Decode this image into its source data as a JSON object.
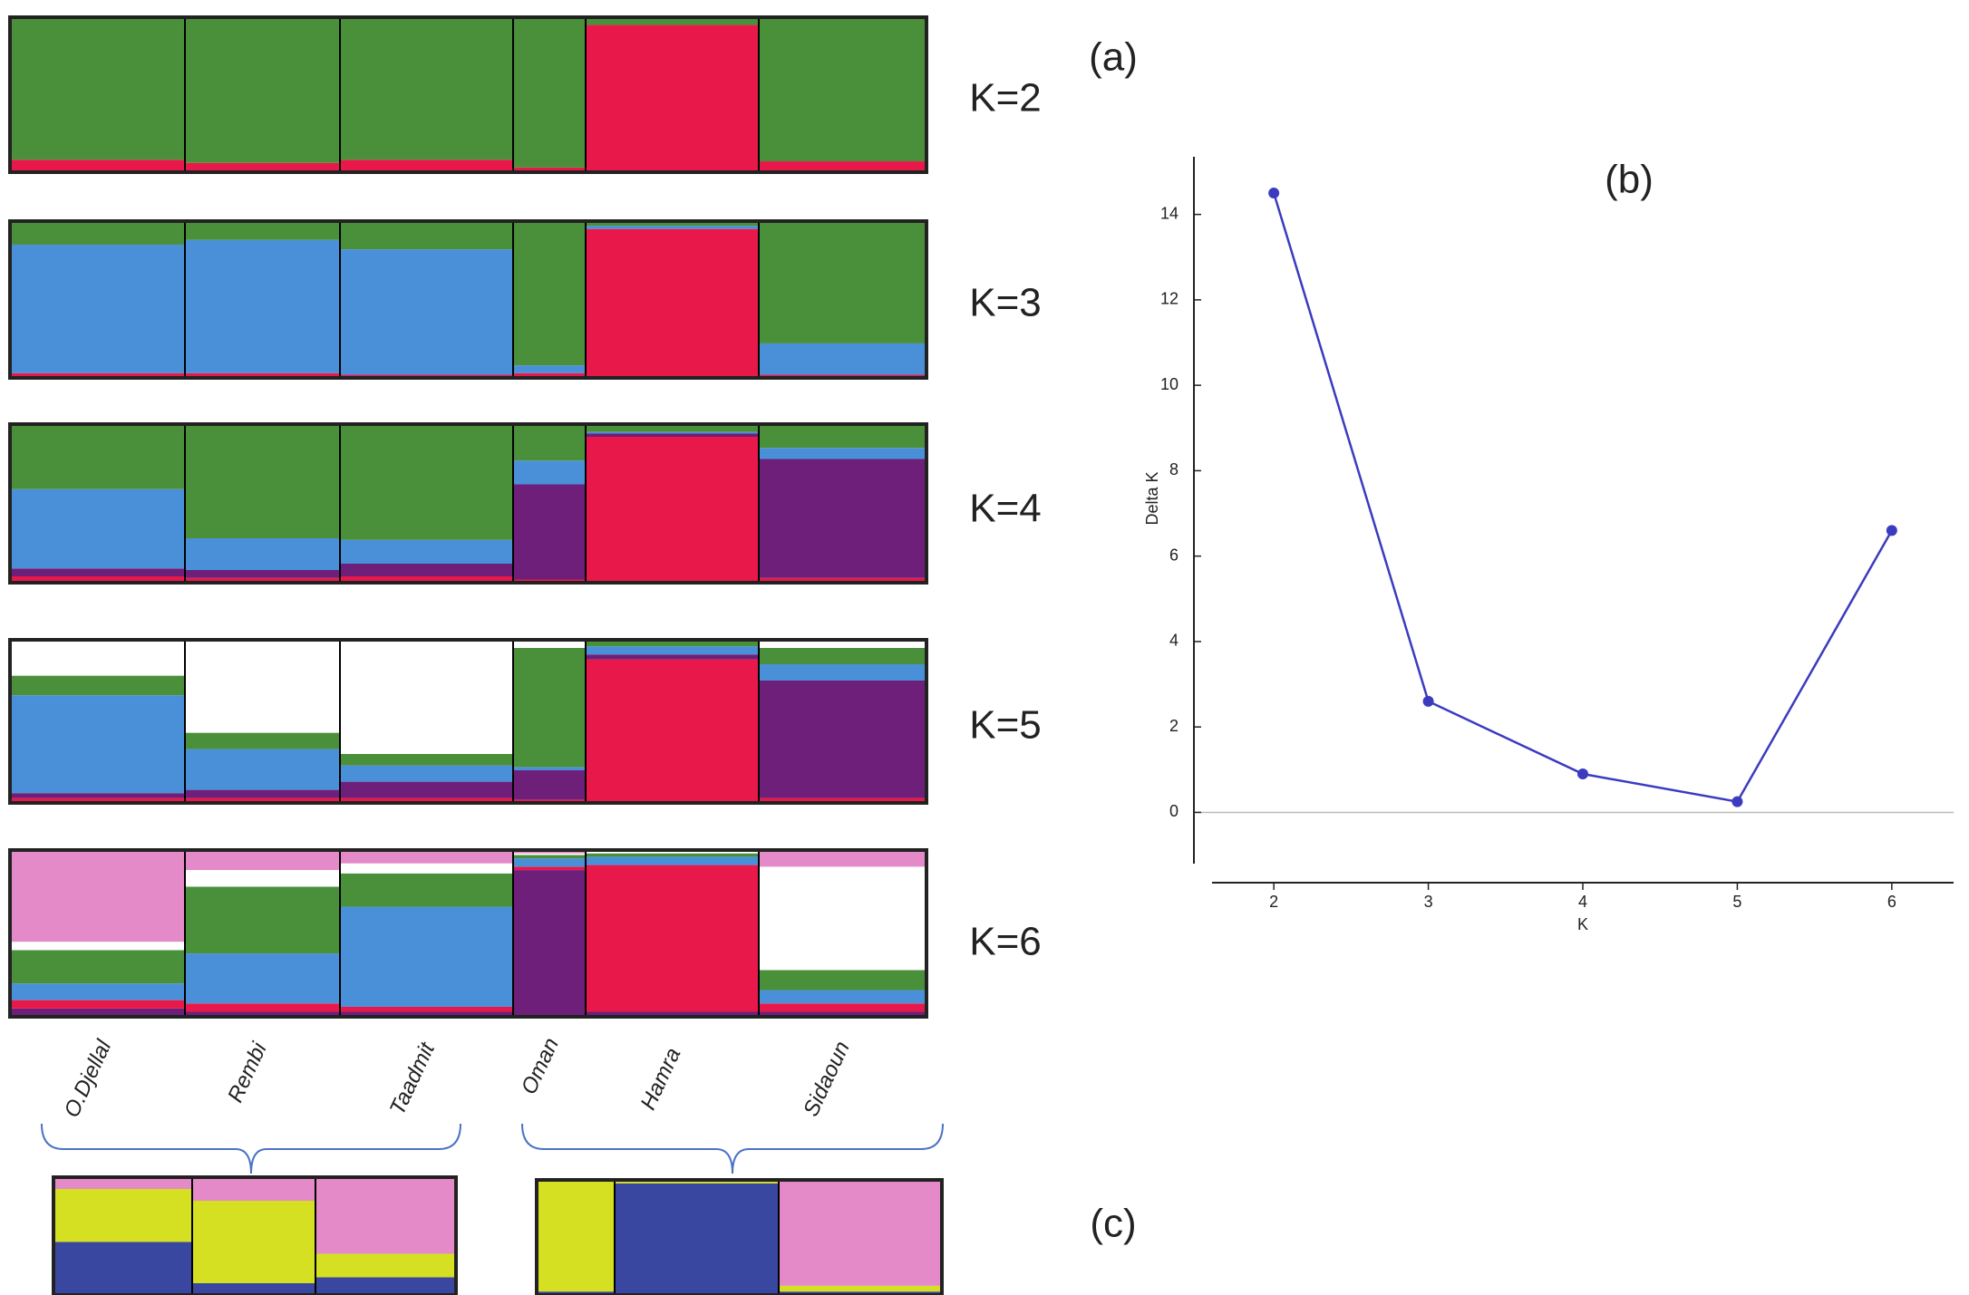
{
  "panel_labels": [
    "(a)",
    "(b)",
    "(c)"
  ],
  "populations": [
    "O.Djellal",
    "Rembi",
    "Taadmit",
    "Oman",
    "Hamra",
    "Sidaoun"
  ],
  "chart_data": [
    {
      "type": "structure",
      "title": "K=2",
      "ylim": [
        0,
        100
      ],
      "series": [
        {
          "color": "#e8194a",
          "values": [
            8,
            6,
            8,
            3,
            95,
            7
          ]
        },
        {
          "color": "#4a8f3a",
          "values": [
            92,
            94,
            92,
            97,
            5,
            93
          ]
        }
      ]
    },
    {
      "type": "structure",
      "title": "K=3",
      "ylim": [
        0,
        100
      ],
      "series": [
        {
          "color": "#e8194a",
          "values": [
            3,
            3,
            2,
            3,
            95,
            2
          ]
        },
        {
          "color": "#4a90d9",
          "values": [
            82,
            85,
            80,
            5,
            2,
            20
          ]
        },
        {
          "color": "#4a8f3a",
          "values": [
            15,
            12,
            18,
            92,
            3,
            78
          ]
        }
      ]
    },
    {
      "type": "structure",
      "title": "K=4",
      "ylim": [
        0,
        100
      ],
      "series": [
        {
          "color": "#e8194a",
          "values": [
            4,
            3,
            4,
            2,
            92,
            3
          ]
        },
        {
          "color": "#6e1f7a",
          "values": [
            5,
            5,
            8,
            60,
            2,
            75
          ]
        },
        {
          "color": "#4a90d9",
          "values": [
            50,
            20,
            15,
            15,
            1,
            7
          ]
        },
        {
          "color": "#4a8f3a",
          "values": [
            41,
            72,
            73,
            23,
            5,
            15
          ]
        }
      ]
    },
    {
      "type": "structure",
      "title": "K=5",
      "ylim": [
        0,
        100
      ],
      "series": [
        {
          "color": "#e8194a",
          "values": [
            3,
            3,
            3,
            2,
            88,
            3
          ]
        },
        {
          "color": "#6e1f7a",
          "values": [
            3,
            5,
            10,
            18,
            3,
            72
          ]
        },
        {
          "color": "#4a90d9",
          "values": [
            60,
            25,
            10,
            2,
            5,
            10
          ]
        },
        {
          "color": "#4a8f3a",
          "values": [
            12,
            10,
            7,
            73,
            3,
            10
          ]
        },
        {
          "color": "#ffffff",
          "values": [
            22,
            57,
            70,
            5,
            1,
            5
          ]
        }
      ]
    },
    {
      "type": "structure",
      "title": "K=6",
      "ylim": [
        0,
        100
      ],
      "series": [
        {
          "color": "#6e1f7a",
          "values": [
            5,
            3,
            3,
            88,
            3,
            3
          ]
        },
        {
          "color": "#e8194a",
          "values": [
            5,
            5,
            3,
            2,
            88,
            5
          ]
        },
        {
          "color": "#4a90d9",
          "values": [
            10,
            30,
            60,
            5,
            5,
            8
          ]
        },
        {
          "color": "#4a8f3a",
          "values": [
            20,
            40,
            20,
            2,
            2,
            12
          ]
        },
        {
          "color": "#ffffff",
          "values": [
            5,
            10,
            6,
            1,
            1,
            62
          ]
        },
        {
          "color": "#e58ac8",
          "values": [
            55,
            12,
            8,
            2,
            1,
            10
          ]
        }
      ]
    },
    {
      "type": "structure",
      "ylim": [
        0,
        100
      ],
      "series": [
        {
          "color": "#3a47a0",
          "values": [
            45,
            10,
            15
          ]
        },
        {
          "color": "#d4e021",
          "values": [
            45,
            70,
            20
          ]
        },
        {
          "color": "#e58ac8",
          "values": [
            10,
            20,
            65
          ]
        }
      ]
    },
    {
      "type": "structure",
      "ylim": [
        0,
        100
      ],
      "series": [
        {
          "color": "#3a47a0",
          "values": [
            3,
            97,
            3
          ]
        },
        {
          "color": "#d4e021",
          "values": [
            97,
            2,
            5
          ]
        },
        {
          "color": "#e58ac8",
          "values": [
            0,
            1,
            92
          ]
        }
      ]
    },
    {
      "type": "line",
      "xlabel": "K",
      "ylabel": "Delta K",
      "color": "#3b3bc0",
      "x": [
        2,
        3,
        4,
        5,
        6
      ],
      "values": [
        14.5,
        2.6,
        0.9,
        0.25,
        6.6
      ],
      "xlim": [
        1.6,
        6.4
      ],
      "ylim": [
        -1.2,
        15.35
      ],
      "xticks": [
        2,
        3,
        4,
        5,
        6
      ],
      "yticks": [
        0,
        2,
        4,
        6,
        8,
        10,
        12,
        14
      ]
    }
  ]
}
